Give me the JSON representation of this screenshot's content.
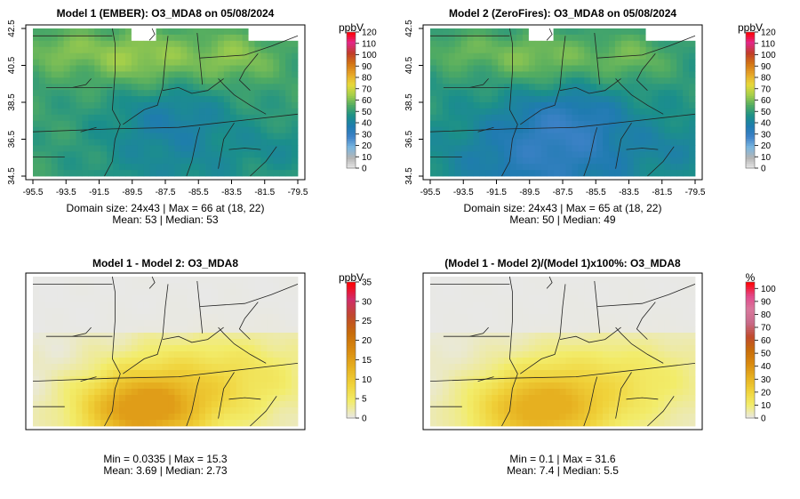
{
  "chart_data": [
    {
      "type": "heatmap",
      "title": "Model 1 (EMBER): O3_MDA8 on 05/08/2024",
      "colorbar": {
        "label": "ppbV",
        "ticks": [
          0,
          10,
          20,
          30,
          40,
          50,
          60,
          70,
          80,
          90,
          100,
          110,
          120
        ],
        "range": [
          0,
          120
        ],
        "stops": [
          "#e8e8e8",
          "#b4b4b4",
          "#7ab6e0",
          "#3e82c8",
          "#1f7bb0",
          "#1b8f8a",
          "#50ab62",
          "#a5cf4a",
          "#e8d93a",
          "#e6a428",
          "#d27414",
          "#c03c28",
          "#e2288a",
          "#ff0000"
        ]
      },
      "xticks": [
        "-95.5",
        "-93.5",
        "-91.5",
        "-89.5",
        "-87.5",
        "-85.5",
        "-83.5",
        "-81.5",
        "-79.5"
      ],
      "yticks": [
        "34.5",
        "36.5",
        "38.5",
        "40.5",
        "42.5"
      ],
      "xlim": [
        -95.5,
        -79.5
      ],
      "ylim": [
        34.5,
        42.5
      ],
      "grid": {
        "cols": 43,
        "rows": 24
      },
      "field": {
        "kind": "model",
        "base": 52,
        "max": 66
      },
      "stats": [
        "Domain size: 24x43 | Max = 66 at (18, 22)",
        "Mean: 53 |  Median: 53"
      ]
    },
    {
      "type": "heatmap",
      "title": "Model 2 (ZeroFires): O3_MDA8 on 05/08/2024",
      "colorbar": {
        "label": "ppbV",
        "ticks": [
          0,
          10,
          20,
          30,
          40,
          50,
          60,
          70,
          80,
          90,
          100,
          110,
          120
        ],
        "range": [
          0,
          120
        ],
        "stops": [
          "#e8e8e8",
          "#b4b4b4",
          "#7ab6e0",
          "#3e82c8",
          "#1f7bb0",
          "#1b8f8a",
          "#50ab62",
          "#a5cf4a",
          "#e8d93a",
          "#e6a428",
          "#d27414",
          "#c03c28",
          "#e2288a",
          "#ff0000"
        ]
      },
      "xticks": [
        "-95.5",
        "-93.5",
        "-91.5",
        "-89.5",
        "-87.5",
        "-85.5",
        "-83.5",
        "-81.5",
        "-79.5"
      ],
      "yticks": [
        "34.5",
        "36.5",
        "38.5",
        "40.5",
        "42.5"
      ],
      "xlim": [
        -95.5,
        -79.5
      ],
      "ylim": [
        34.5,
        42.5
      ],
      "grid": {
        "cols": 43,
        "rows": 24
      },
      "field": {
        "kind": "model2",
        "base": 49,
        "max": 65
      },
      "stats": [
        "Domain size: 24x43 | Max = 65 at (18, 22)",
        "Mean: 50 |  Median: 49"
      ]
    },
    {
      "type": "heatmap",
      "title": "Model 1 - Model 2: O3_MDA8",
      "colorbar": {
        "label": "ppbV",
        "ticks": [
          0,
          5,
          10,
          15,
          20,
          25,
          30,
          35
        ],
        "range": [
          0,
          35
        ],
        "stops": [
          "#e8e8e8",
          "#f2ec6a",
          "#f0d23a",
          "#e6b020",
          "#d98a10",
          "#c76c0a",
          "#c04a2c",
          "#d02c6a",
          "#ff0000"
        ]
      },
      "xlim": [
        -95.5,
        -79.5
      ],
      "ylim": [
        34.5,
        42.5
      ],
      "grid": {
        "cols": 43,
        "rows": 24
      },
      "field": {
        "kind": "diff",
        "max": 15.3
      },
      "stats": [
        "Min = 0.0335 | Max = 15.3",
        "Mean: 3.69 |  Median: 2.73"
      ]
    },
    {
      "type": "heatmap",
      "title": "(Model 1 - Model 2)/(Model 1)x100%: O3_MDA8",
      "colorbar": {
        "label": "%",
        "ticks": [
          0,
          10,
          20,
          30,
          40,
          50,
          60,
          70,
          80,
          90,
          100
        ],
        "range": [
          0,
          105
        ],
        "stops": [
          "#e8e8e8",
          "#f2ec6a",
          "#f0d23a",
          "#e6b020",
          "#d98a10",
          "#c76c0a",
          "#c04a2c",
          "#c86a8a",
          "#d8789c",
          "#e2488a",
          "#ff0000"
        ]
      },
      "xlim": [
        -95.5,
        -79.5
      ],
      "ylim": [
        34.5,
        42.5
      ],
      "grid": {
        "cols": 43,
        "rows": 24
      },
      "field": {
        "kind": "pct",
        "max": 31.6
      },
      "stats": [
        "Min = 0.1 | Max = 31.6",
        "Mean: 7.4 |  Median: 5.5"
      ]
    }
  ]
}
